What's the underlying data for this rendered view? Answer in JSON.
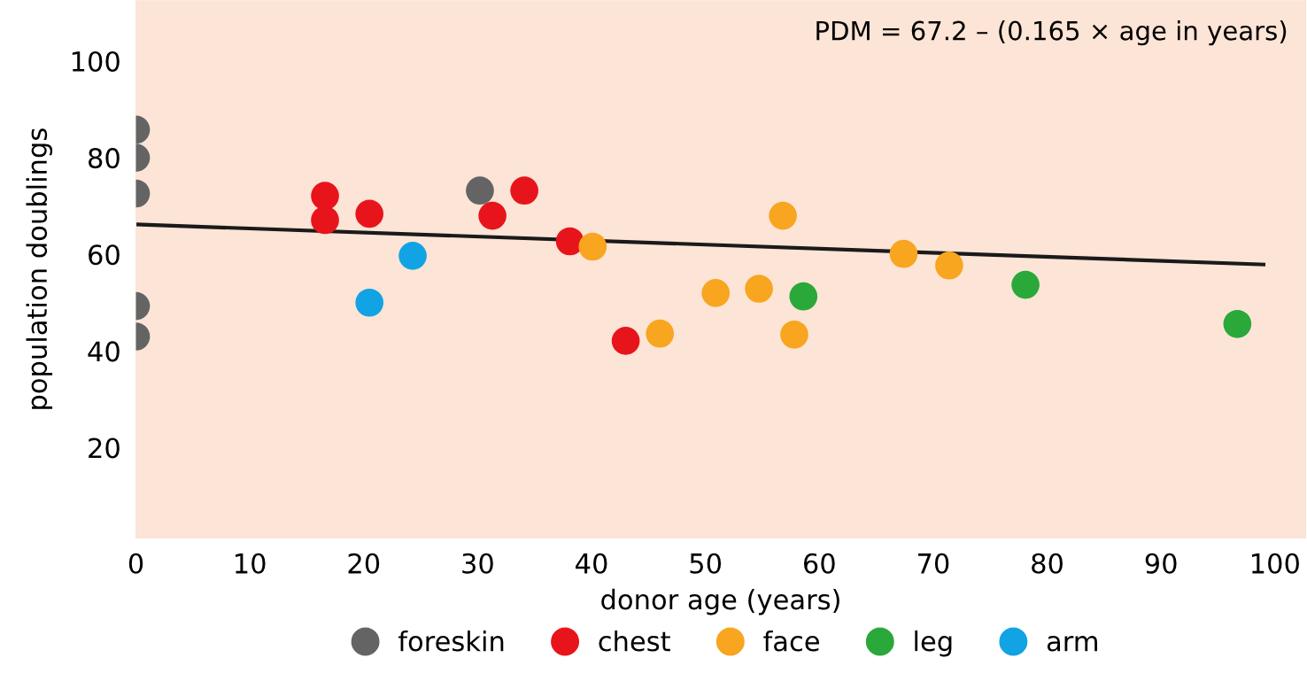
{
  "chart_data": {
    "type": "scatter",
    "xlabel": "donor age (years)",
    "ylabel": "population doublings",
    "xlim": [
      0,
      102.7
    ],
    "ylim": [
      1.3,
      112.5
    ],
    "xticks": [
      0,
      10,
      20,
      30,
      40,
      50,
      60,
      70,
      80,
      90,
      100
    ],
    "yticks": [
      20,
      40,
      60,
      80,
      100
    ],
    "grid": false,
    "legend": "bottom",
    "marker": "circle",
    "annotations": [
      "PDM = 67.2 – (0.165 × age in years)"
    ],
    "series": [
      {
        "name": "foreskin",
        "color": "#646464",
        "x": [
          0,
          0,
          0,
          0,
          0,
          30.2
        ],
        "values": [
          85.8,
          80,
          72.6,
          49.3,
          43,
          73.2
        ]
      },
      {
        "name": "chest",
        "color": "#e8141c",
        "x": [
          16.6,
          16.6,
          20.5,
          31.3,
          34.1,
          38.1,
          43
        ],
        "values": [
          72.1,
          67.1,
          68.4,
          68,
          73.2,
          62.7,
          42.1
        ]
      },
      {
        "name": "face",
        "color": "#f8a51f",
        "x": [
          40.1,
          46,
          50.9,
          54.7,
          56.8,
          57.8,
          67.4,
          71.4
        ],
        "values": [
          61.6,
          43.6,
          52,
          52.9,
          68,
          43.4,
          60.1,
          57.7
        ]
      },
      {
        "name": "leg",
        "color": "#2aa83a",
        "x": [
          58.6,
          78.1,
          96.7
        ],
        "values": [
          51.3,
          53.7,
          45.6
        ]
      },
      {
        "name": "arm",
        "color": "#11a3e3",
        "x": [
          20.5,
          24.3
        ],
        "values": [
          50,
          59.7
        ]
      },
      {
        "type": "line",
        "marker": "none",
        "color": "#1a1a1a",
        "x": [
          0,
          99
        ],
        "values": [
          66.2,
          57.9
        ]
      }
    ]
  }
}
